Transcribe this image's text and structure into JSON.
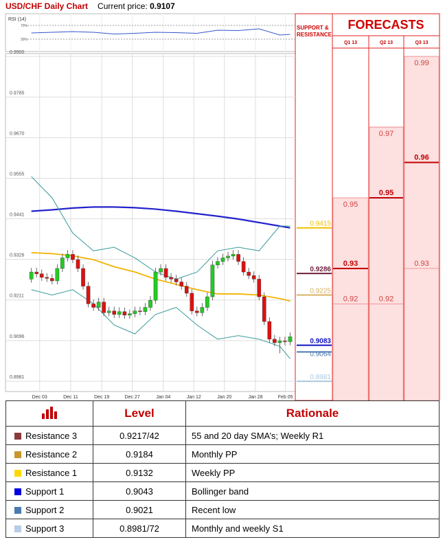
{
  "header": {
    "title": "USD/CHF Daily Chart",
    "price_label": "Current price:",
    "price": 0.9107
  },
  "chart_data": {
    "type": "candlestick",
    "xlim": [
      -5,
      51
    ],
    "xticks": [
      {
        "value": 1.6,
        "label": "Dec 03"
      },
      {
        "value": 7.6,
        "label": "Dec 11"
      },
      {
        "value": 13.6,
        "label": "Dec 19"
      },
      {
        "value": 19.5,
        "label": "Dec 27"
      },
      {
        "value": 25.5,
        "label": "Jan 04"
      },
      {
        "value": 31.4,
        "label": "Jan 12"
      },
      {
        "value": 37.3,
        "label": "Jan 20"
      },
      {
        "value": 43.3,
        "label": "Jan 28"
      },
      {
        "value": 49.1,
        "label": "Feb 05"
      }
    ],
    "ylim": [
      0.8952,
      0.9908
    ],
    "yticks": [
      {
        "value": 0.99,
        "label": "0.9900"
      },
      0.9785,
      {
        "value": 0.967,
        "label": "0.9670"
      },
      0.9555,
      0.9441,
      0.9326,
      0.9211,
      0.9096,
      0.8981
    ],
    "grid": true,
    "up_color": "#22cc22",
    "down_color": "#dd1111",
    "candles": {
      "x": [
        0,
        1,
        2,
        3,
        4,
        5,
        6,
        7,
        8,
        9,
        10,
        11,
        12,
        13,
        14,
        15,
        16,
        17,
        18,
        19,
        20,
        21,
        22,
        23,
        24,
        25,
        26,
        27,
        28,
        29,
        30,
        31,
        32,
        33,
        34,
        35,
        36,
        37,
        38,
        39,
        40,
        41,
        42,
        43,
        44,
        45,
        46,
        47,
        48,
        49,
        50
      ],
      "open": [
        0.927,
        0.929,
        0.9285,
        0.9275,
        0.9272,
        0.9265,
        0.93,
        0.933,
        0.934,
        0.9325,
        0.93,
        0.925,
        0.92,
        0.919,
        0.9205,
        0.9175,
        0.918,
        0.917,
        0.9178,
        0.9168,
        0.9172,
        0.918,
        0.9178,
        0.919,
        0.921,
        0.929,
        0.93,
        0.9275,
        0.927,
        0.9262,
        0.925,
        0.923,
        0.918,
        0.9175,
        0.919,
        0.922,
        0.931,
        0.932,
        0.933,
        0.9335,
        0.934,
        0.932,
        0.929,
        0.928,
        0.927,
        0.922,
        0.915,
        0.91,
        0.909,
        0.9095,
        0.9093
      ],
      "high": [
        0.9302,
        0.9302,
        0.9297,
        0.9287,
        0.9284,
        0.9312,
        0.9342,
        0.9352,
        0.9352,
        0.9337,
        0.9312,
        0.9262,
        0.9212,
        0.9217,
        0.9217,
        0.9192,
        0.9192,
        0.919,
        0.919,
        0.9184,
        0.9192,
        0.9192,
        0.9202,
        0.9222,
        0.9302,
        0.9312,
        0.9312,
        0.9287,
        0.9282,
        0.9274,
        0.9262,
        0.9242,
        0.9192,
        0.9202,
        0.9232,
        0.9322,
        0.9332,
        0.9342,
        0.9347,
        0.9352,
        0.9352,
        0.9332,
        0.9302,
        0.9292,
        0.9282,
        0.9232,
        0.9162,
        0.9112,
        0.9107,
        0.9107,
        0.9119
      ],
      "low": [
        0.926,
        0.9275,
        0.9265,
        0.9262,
        0.9255,
        0.9255,
        0.929,
        0.932,
        0.9315,
        0.929,
        0.924,
        0.919,
        0.918,
        0.918,
        0.9165,
        0.9165,
        0.916,
        0.916,
        0.9158,
        0.9158,
        0.9162,
        0.9168,
        0.9168,
        0.918,
        0.92,
        0.928,
        0.9265,
        0.926,
        0.9252,
        0.924,
        0.922,
        0.917,
        0.9165,
        0.9165,
        0.918,
        0.921,
        0.93,
        0.931,
        0.932,
        0.9325,
        0.931,
        0.928,
        0.927,
        0.926,
        0.921,
        0.914,
        0.909,
        0.908,
        0.906,
        0.9083,
        0.9083
      ],
      "close": [
        0.929,
        0.9285,
        0.9275,
        0.9272,
        0.9265,
        0.93,
        0.933,
        0.934,
        0.9325,
        0.93,
        0.925,
        0.92,
        0.919,
        0.9205,
        0.9175,
        0.918,
        0.917,
        0.9178,
        0.9168,
        0.9172,
        0.918,
        0.9178,
        0.919,
        0.921,
        0.929,
        0.93,
        0.9275,
        0.927,
        0.9262,
        0.925,
        0.923,
        0.918,
        0.9175,
        0.919,
        0.922,
        0.931,
        0.932,
        0.933,
        0.9335,
        0.934,
        0.932,
        0.929,
        0.928,
        0.927,
        0.922,
        0.915,
        0.91,
        0.909,
        0.9095,
        0.9093,
        0.9107
      ]
    },
    "overlay_x": [
      0,
      4,
      8,
      12,
      16,
      20,
      24,
      28,
      32,
      36,
      40,
      44,
      48,
      50
    ],
    "overlays": [
      {
        "color": "#2222cc",
        "values": [
          0.9462,
          0.9466,
          0.9471,
          0.9474,
          0.9474,
          0.9472,
          0.9468,
          0.9462,
          0.9455,
          0.9448,
          0.944,
          0.943,
          0.942,
          0.9415
        ]
      },
      {
        "color": "#f0b400",
        "values": [
          0.9345,
          0.9342,
          0.9336,
          0.9325,
          0.9305,
          0.929,
          0.927,
          0.9255,
          0.924,
          0.9228,
          0.9228,
          0.9225,
          0.9215,
          0.9208
        ]
      },
      {
        "color": "#3a9a9a",
        "values": [
          0.956,
          0.95,
          0.94,
          0.935,
          0.936,
          0.933,
          0.929,
          0.927,
          0.929,
          0.935,
          0.936,
          0.935,
          0.942,
          0.942
        ]
      },
      {
        "color": "#3a9a9a",
        "values": [
          0.924,
          0.9225,
          0.924,
          0.92,
          0.914,
          0.9115,
          0.917,
          0.919,
          0.914,
          0.91,
          0.911,
          0.91,
          0.908,
          0.9045
        ]
      }
    ],
    "rsi": {
      "title": "RSI (14)",
      "ylim": [
        0,
        100
      ],
      "yticks": [
        {
          "value": 70,
          "label": "70%"
        },
        {
          "value": 30,
          "label": "30%"
        }
      ],
      "color": "#3355cc",
      "values": [
        48,
        50,
        52,
        50,
        45,
        47,
        50,
        49,
        47,
        56,
        55,
        60,
        42,
        44
      ]
    }
  },
  "support_resistance": {
    "title": "SUPPORT & RESISTANCE",
    "levels": [
      {
        "value": 0.9415,
        "color": "#f0c000"
      },
      {
        "value": 0.9286,
        "color": "#6b1e3c"
      },
      {
        "value": 0.9225,
        "color": "#d8b060"
      },
      {
        "value": 0.9083,
        "color": "#1010c0"
      },
      {
        "value": 0.9064,
        "color": "#4a7ab0"
      },
      {
        "value": 0.8981,
        "color": "#a8c8e0"
      }
    ]
  },
  "forecasts": {
    "title": "FORECASTS",
    "columns": [
      {
        "label": "Q1 13",
        "values": [
          0.95,
          0.93,
          0.92
        ]
      },
      {
        "label": "Q2 13",
        "values": [
          0.97,
          0.95,
          0.92
        ]
      },
      {
        "label": "Q3 13",
        "values": [
          0.99,
          0.96,
          0.93
        ]
      }
    ]
  },
  "table": {
    "headers": [
      "Level",
      "Rationale"
    ],
    "rows": [
      {
        "name": "Resistance 3",
        "color": "#8b3a3a",
        "level": "0.9217/42",
        "rationale": "55 and 20 day SMA’s; Weekly R1"
      },
      {
        "name": "Resistance 2",
        "color": "#c8962a",
        "level": "0.9184",
        "rationale": "Monthly PP"
      },
      {
        "name": "Resistance 1",
        "color": "#ffd700",
        "level": "0.9132",
        "rationale": "Weekly PP"
      },
      {
        "name": "Support 1",
        "color": "#0000e0",
        "level": "0.9043",
        "rationale": "Bollinger band"
      },
      {
        "name": "Support 2",
        "color": "#4a7ab0",
        "level": "0.9021",
        "rationale": "Recent low"
      },
      {
        "name": "Support 3",
        "color": "#b8cce4",
        "level": "0.8981/72",
        "rationale": "Monthly and weekly S1"
      }
    ]
  }
}
